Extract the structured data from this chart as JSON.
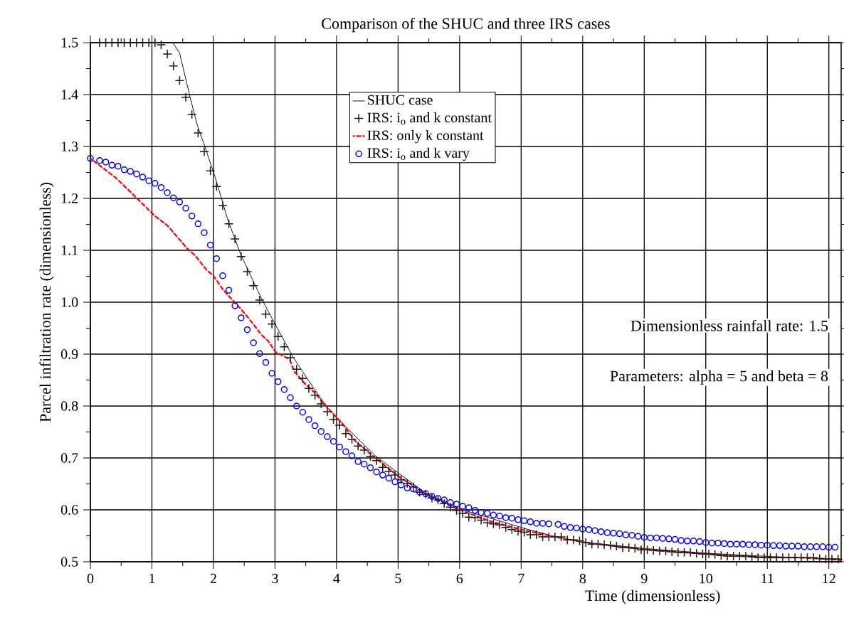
{
  "chart_data": {
    "type": "line",
    "title": "Comparison of the SHUC and three IRS cases",
    "xlabel": "Time (dimensionless)",
    "ylabel": "Parcel infiltration rate (dimensionless)",
    "xlim": [
      0,
      12.2
    ],
    "ylim": [
      0.5,
      1.5
    ],
    "xticks": [
      0,
      1,
      2,
      3,
      4,
      5,
      6,
      7,
      8,
      9,
      10,
      11,
      12
    ],
    "yticks": [
      0.5,
      0.6,
      0.7,
      0.8,
      0.9,
      {
        "value": 1.0,
        "label": "1.0"
      },
      1.1,
      1.2,
      1.3,
      1.4,
      1.5
    ],
    "grid": true,
    "legend": "top",
    "annotations": [
      "Dimensionless rainfall rate: 1.5",
      "Parameters: alpha = 5 and beta = 8"
    ],
    "series": [
      {
        "name": "SHUC case",
        "type": "line",
        "color": "#000000",
        "marker": "none",
        "line_style": "solid",
        "x": [
          1.34,
          1.45,
          1.62,
          1.74,
          1.86,
          2.03,
          2.23,
          2.44,
          2.78,
          3.01,
          3.3,
          3.62,
          3.82,
          4.03,
          4.64,
          5.05,
          5.44,
          6.05,
          7.06,
          7.56,
          8.04,
          9.06,
          10.07,
          11.07,
          12.19
        ],
        "values": [
          1.5,
          1.48,
          1.395,
          1.34,
          1.3,
          1.24,
          1.16,
          1.093,
          1.007,
          0.956,
          0.893,
          0.836,
          0.801,
          0.774,
          0.703,
          0.667,
          0.633,
          0.6,
          0.564,
          0.548,
          0.537,
          0.525,
          0.516,
          0.51,
          0.505
        ]
      },
      {
        "name": "IRS: i$_{o}$ and k constant",
        "type": "scatter",
        "color": "#1a1a1a",
        "marker": "cross",
        "x": [
          0.15,
          0.25,
          0.35,
          0.45,
          0.55,
          0.65,
          0.75,
          0.85,
          0.95,
          1.05,
          1.15,
          1.25,
          1.35,
          1.45,
          1.55,
          1.65,
          1.75,
          1.85,
          1.95,
          2.05,
          2.15,
          2.25,
          2.35,
          2.45,
          2.55,
          2.65,
          2.75,
          2.85,
          2.95,
          3.05,
          3.15,
          3.25,
          3.35,
          3.45,
          3.55,
          3.65,
          3.75,
          3.85,
          3.95,
          4.05,
          4.15,
          4.25,
          4.35,
          4.45,
          4.55,
          4.65,
          4.75,
          4.85,
          4.95,
          5.05,
          5.15,
          5.25,
          5.35,
          5.45,
          5.55,
          5.65,
          5.75,
          5.85,
          5.95,
          6.05,
          6.15,
          6.25,
          6.35,
          6.45,
          6.55,
          6.65,
          6.75,
          6.85,
          6.95,
          7.05,
          7.15,
          7.25,
          7.35,
          7.45,
          7.55,
          7.65,
          7.75,
          7.85,
          7.95,
          8.05,
          8.15,
          8.25,
          8.35,
          8.45,
          8.55,
          8.65,
          8.75,
          8.85,
          8.95,
          9.05,
          9.15,
          9.25,
          9.35,
          9.45,
          9.55,
          9.65,
          9.75,
          9.85,
          9.95,
          10.05,
          10.15,
          10.25,
          10.35,
          10.45,
          10.55,
          10.65,
          10.75,
          10.85,
          10.95,
          11.05,
          11.15,
          11.25,
          11.35,
          11.45,
          11.55,
          11.65,
          11.75,
          11.85,
          11.95,
          12.05,
          12.15
        ],
        "values": [
          1.5,
          1.5,
          1.5,
          1.5,
          1.5,
          1.5,
          1.5,
          1.5,
          1.5,
          1.5,
          1.496,
          1.478,
          1.455,
          1.427,
          1.395,
          1.362,
          1.326,
          1.29,
          1.253,
          1.223,
          1.186,
          1.151,
          1.122,
          1.088,
          1.059,
          1.032,
          1.004,
          0.977,
          0.958,
          0.934,
          0.914,
          0.893,
          0.871,
          0.853,
          0.834,
          0.821,
          0.804,
          0.789,
          0.774,
          0.763,
          0.747,
          0.736,
          0.723,
          0.715,
          0.703,
          0.695,
          0.682,
          0.674,
          0.667,
          0.658,
          0.651,
          0.644,
          0.634,
          0.63,
          0.623,
          0.619,
          0.612,
          0.605,
          0.599,
          0.593,
          0.586,
          0.585,
          0.58,
          0.575,
          0.573,
          0.571,
          0.566,
          0.562,
          0.559,
          0.557,
          0.552,
          0.552,
          0.548,
          0.548,
          0.548,
          0.548,
          0.542,
          0.542,
          0.54,
          0.537,
          0.534,
          0.534,
          0.533,
          0.532,
          0.53,
          0.527,
          0.527,
          0.526,
          0.523,
          0.523,
          0.522,
          0.521,
          0.521,
          0.519,
          0.518,
          0.518,
          0.518,
          0.516,
          0.515,
          0.515,
          0.514,
          0.512,
          0.511,
          0.511,
          0.511,
          0.511,
          0.51,
          0.508,
          0.508,
          0.508,
          0.508,
          0.508,
          0.508,
          0.508,
          0.508,
          0.508,
          0.508,
          0.506,
          0.505,
          0.505,
          0.505
        ]
      },
      {
        "name": "IRS: only k constant",
        "type": "line",
        "color": "#ff0000",
        "marker": "none",
        "line_style": "dashed",
        "x": [
          0,
          0.21,
          0.41,
          0.69,
          1.04,
          1.25,
          1.57,
          1.71,
          1.89,
          2.0,
          2.15,
          2.43,
          2.58,
          2.79,
          2.89,
          3.01,
          3.24,
          3.31,
          3.47,
          3.65,
          3.82,
          4.09,
          4.3,
          4.6,
          5.0,
          5.5,
          6.0,
          6.5,
          7.0,
          7.5,
          8.0,
          8.5,
          9.0,
          9.5,
          10.0,
          10.5,
          11.0,
          11.5,
          12.0,
          12.2
        ],
        "values": [
          1.277,
          1.258,
          1.24,
          1.208,
          1.167,
          1.148,
          1.104,
          1.089,
          1.062,
          1.051,
          1.025,
          0.989,
          0.968,
          0.936,
          0.925,
          0.904,
          0.89,
          0.867,
          0.845,
          0.825,
          0.801,
          0.767,
          0.733,
          0.703,
          0.665,
          0.627,
          0.6,
          0.578,
          0.562,
          0.549,
          0.538,
          0.53,
          0.524,
          0.519,
          0.515,
          0.511,
          0.508,
          0.508,
          0.505,
          0.503
        ]
      },
      {
        "name": "IRS: i$_{o}$ and k vary",
        "type": "scatter",
        "color": "#0000ff",
        "marker": "circle",
        "x": [
          0,
          0.15,
          0.25,
          0.35,
          0.45,
          0.55,
          0.65,
          0.75,
          0.85,
          0.95,
          1.05,
          1.15,
          1.25,
          1.35,
          1.45,
          1.55,
          1.65,
          1.75,
          1.85,
          1.95,
          2.05,
          2.15,
          2.25,
          2.35,
          2.45,
          2.55,
          2.65,
          2.75,
          2.85,
          2.95,
          3.05,
          3.15,
          3.25,
          3.35,
          3.45,
          3.55,
          3.65,
          3.75,
          3.85,
          3.95,
          4.05,
          4.15,
          4.25,
          4.35,
          4.45,
          4.55,
          4.65,
          4.75,
          4.85,
          4.95,
          5.05,
          5.15,
          5.25,
          5.35,
          5.45,
          5.55,
          5.65,
          5.75,
          5.85,
          5.95,
          6.05,
          6.15,
          6.25,
          6.35,
          6.45,
          6.55,
          6.65,
          6.75,
          6.85,
          6.95,
          7.05,
          7.15,
          7.25,
          7.35,
          7.45,
          7.6,
          7.7,
          7.8,
          7.9,
          8.0,
          8.1,
          8.2,
          8.3,
          8.4,
          8.5,
          8.6,
          8.7,
          8.8,
          8.9,
          9.0,
          9.1,
          9.2,
          9.3,
          9.4,
          9.5,
          9.6,
          9.7,
          9.8,
          9.9,
          10.0,
          10.1,
          10.2,
          10.3,
          10.4,
          10.5,
          10.6,
          10.7,
          10.8,
          10.9,
          11.0,
          11.1,
          11.2,
          11.3,
          11.4,
          11.5,
          11.6,
          11.7,
          11.8,
          11.9,
          12.0,
          12.1
        ],
        "values": [
          1.277,
          1.273,
          1.27,
          1.264,
          1.262,
          1.255,
          1.252,
          1.247,
          1.241,
          1.234,
          1.229,
          1.221,
          1.211,
          1.201,
          1.193,
          1.181,
          1.166,
          1.151,
          1.134,
          1.11,
          1.084,
          1.051,
          1.023,
          0.993,
          0.97,
          0.947,
          0.922,
          0.901,
          0.884,
          0.863,
          0.847,
          0.832,
          0.816,
          0.8,
          0.788,
          0.774,
          0.762,
          0.751,
          0.741,
          0.732,
          0.721,
          0.712,
          0.704,
          0.693,
          0.688,
          0.681,
          0.673,
          0.667,
          0.661,
          0.654,
          0.648,
          0.642,
          0.64,
          0.634,
          0.631,
          0.626,
          0.622,
          0.619,
          0.614,
          0.611,
          0.607,
          0.604,
          0.599,
          0.595,
          0.593,
          0.59,
          0.588,
          0.585,
          0.584,
          0.581,
          0.579,
          0.577,
          0.574,
          0.574,
          0.573,
          0.572,
          0.568,
          0.566,
          0.565,
          0.563,
          0.562,
          0.56,
          0.558,
          0.556,
          0.555,
          0.554,
          0.552,
          0.551,
          0.549,
          0.547,
          0.546,
          0.546,
          0.545,
          0.544,
          0.543,
          0.541,
          0.54,
          0.54,
          0.539,
          0.537,
          0.536,
          0.536,
          0.535,
          0.534,
          0.534,
          0.534,
          0.533,
          0.533,
          0.532,
          0.532,
          0.531,
          0.531,
          0.53,
          0.53,
          0.53,
          0.529,
          0.529,
          0.529,
          0.529,
          0.528,
          0.528
        ]
      }
    ]
  }
}
